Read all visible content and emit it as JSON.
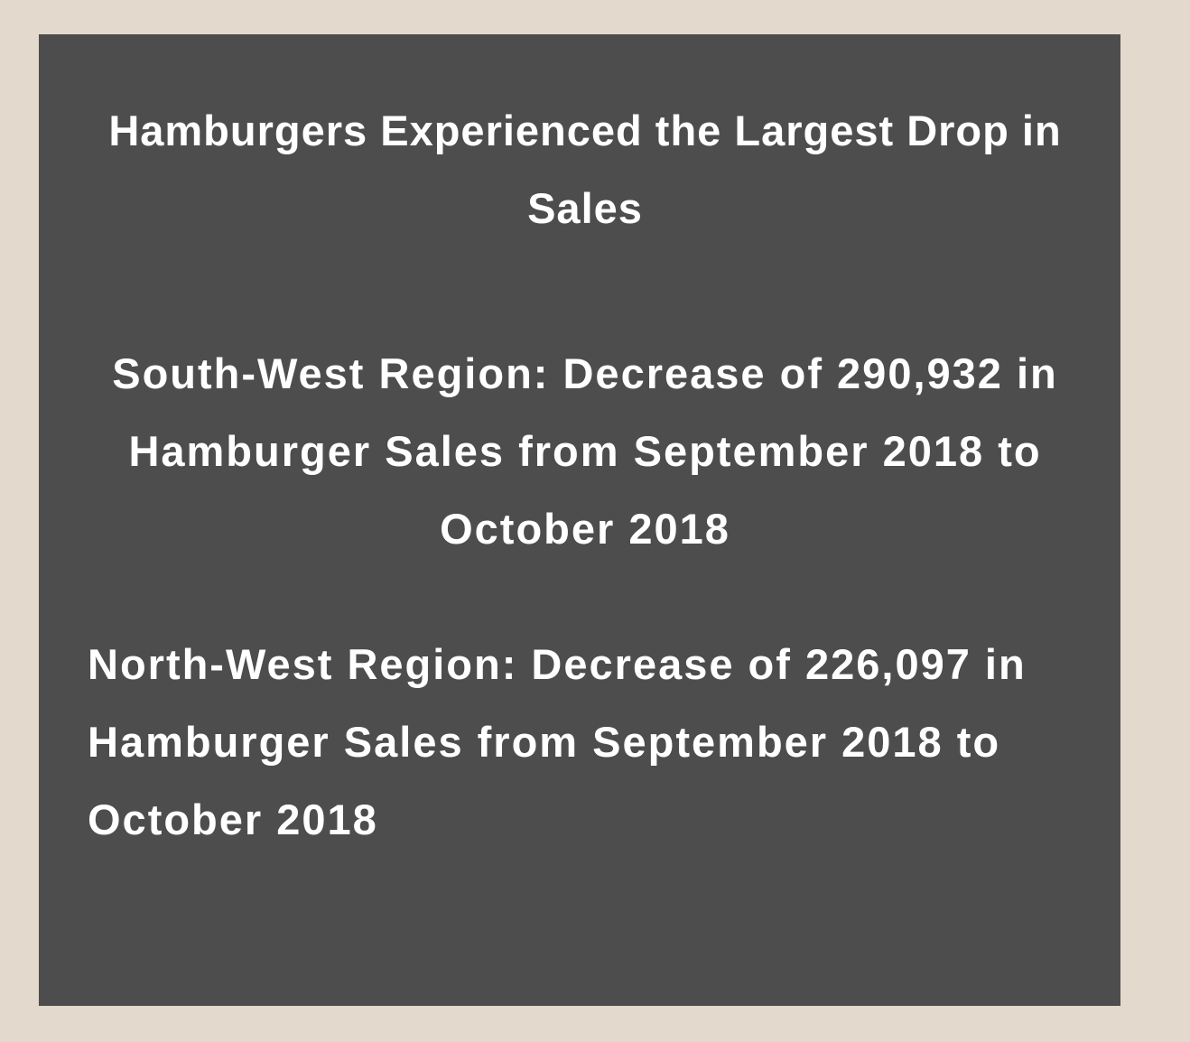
{
  "colors": {
    "page_background": "#e3d9cc",
    "card_background": "#4d4d4d",
    "text": "#ffffff"
  },
  "card": {
    "title": "Hamburgers Experienced the Largest Drop in Sales",
    "south_west": "South-West Region: Decrease of 290,932 in Hamburger Sales from September 2018 to October 2018",
    "north_west": {
      "line1": "North-West Region: Decrease of 226,097 in",
      "line2": "Hamburger Sales from September 2018 to",
      "line3": "October 2018"
    }
  }
}
